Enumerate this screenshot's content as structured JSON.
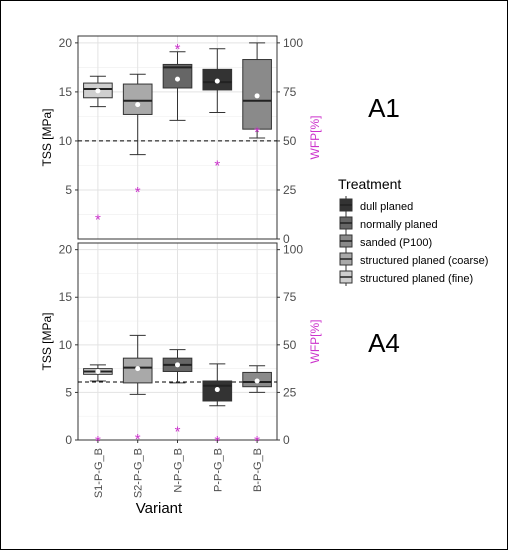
{
  "chart_data": [
    {
      "type": "box",
      "panel_label": "A1",
      "categories": [
        "S1-P-G_B",
        "S2-P-G_B",
        "N-P-G_B",
        "P-P-G_B",
        "B-P-G_B"
      ],
      "ylabel": "TSS [MPa]",
      "y2label": "WFP[%]",
      "ylim": [
        0,
        20.7
      ],
      "y2lim": [
        0,
        103.5
      ],
      "yticks": [
        5,
        10,
        15,
        20
      ],
      "y2ticks": [
        0,
        25,
        50,
        75,
        100
      ],
      "reference_line_tss": 10,
      "boxes": [
        {
          "category": "S1-P-G_B",
          "treatment": "structured planed (fine)",
          "min": 13.5,
          "q1": 14.4,
          "median": 15.3,
          "q3": 15.9,
          "max": 16.6,
          "mean": 15.1
        },
        {
          "category": "S2-P-G_B",
          "treatment": "structured planed (coarse)",
          "min": 8.6,
          "q1": 12.7,
          "median": 14.1,
          "q3": 15.8,
          "max": 16.8,
          "mean": 13.7
        },
        {
          "category": "N-P-G_B",
          "treatment": "normally planed",
          "min": 12.1,
          "q1": 15.4,
          "median": 17.5,
          "q3": 17.8,
          "max": 19.1,
          "mean": 16.3
        },
        {
          "category": "P-P-G_B",
          "treatment": "dull planed",
          "min": 12.9,
          "q1": 15.2,
          "median": 16.0,
          "q3": 17.3,
          "max": 19.4,
          "mean": 16.1
        },
        {
          "category": "B-P-G_B",
          "treatment": "sanded (P100)",
          "min": 10.3,
          "q1": 11.2,
          "median": 14.1,
          "q3": 18.3,
          "max": 20.0,
          "mean": 14.6
        }
      ],
      "wfp_points": [
        10.5,
        24.5,
        97.5,
        38.0,
        55.0
      ]
    },
    {
      "type": "box",
      "panel_label": "A4",
      "categories": [
        "S1-P-G_B",
        "S2-P-G_B",
        "N-P-G_B",
        "P-P-G_B",
        "B-P-G_B"
      ],
      "ylabel": "TSS [MPa]",
      "y2label": "WFP[%]",
      "ylim": [
        0,
        20.7
      ],
      "y2lim": [
        0,
        103.5
      ],
      "yticks": [
        0,
        5,
        10,
        15,
        20
      ],
      "y2ticks": [
        0,
        25,
        50,
        75,
        100
      ],
      "reference_line_tss": 6.1,
      "boxes": [
        {
          "category": "S1-P-G_B",
          "treatment": "structured planed (fine)",
          "min": 6.2,
          "q1": 6.9,
          "median": 7.2,
          "q3": 7.5,
          "max": 7.9,
          "mean": 7.2
        },
        {
          "category": "S2-P-G_B",
          "treatment": "structured planed (coarse)",
          "min": 4.8,
          "q1": 6.0,
          "median": 7.6,
          "q3": 8.6,
          "max": 11.0,
          "mean": 7.5
        },
        {
          "category": "N-P-G_B",
          "treatment": "normally planed",
          "min": 6.0,
          "q1": 7.2,
          "median": 7.9,
          "q3": 8.6,
          "max": 9.5,
          "mean": 7.9
        },
        {
          "category": "P-P-G_B",
          "treatment": "dull planed",
          "min": 3.6,
          "q1": 4.1,
          "median": 5.7,
          "q3": 6.2,
          "max": 8.0,
          "mean": 5.3
        },
        {
          "category": "B-P-G_B",
          "treatment": "sanded (P100)",
          "min": 5.0,
          "q1": 5.6,
          "median": 6.1,
          "q3": 7.1,
          "max": 7.8,
          "mean": 6.2
        }
      ],
      "wfp_points": [
        0,
        1.0,
        5.0,
        0,
        0
      ]
    }
  ],
  "xlabel": "Variant",
  "legend": {
    "title": "Treatment",
    "placement": "right",
    "items": [
      {
        "label": "dull planed",
        "color": "#333333"
      },
      {
        "label": "normally planed",
        "color": "#666666"
      },
      {
        "label": "sanded (P100)",
        "color": "#8a8a8a"
      },
      {
        "label": "structured planed (coarse)",
        "color": "#a9a9a9"
      },
      {
        "label": "structured planed (fine)",
        "color": "#cfcfcf"
      }
    ]
  },
  "colors": {
    "wfp_marker": "#cc33cc",
    "wfp_axis": "#cc33cc",
    "grid": "#e6e6e6",
    "axis_text": "#4d4d4d"
  }
}
